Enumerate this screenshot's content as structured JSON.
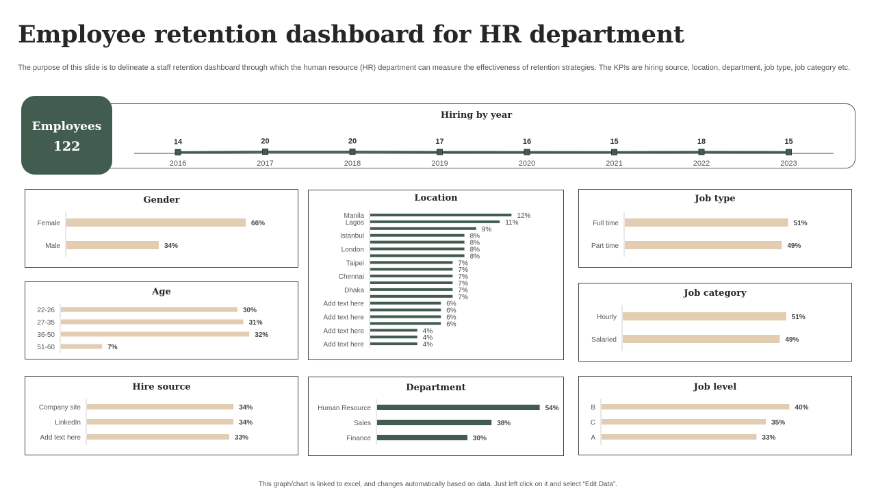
{
  "page": {
    "title": "Employee retention dashboard for HR department",
    "subtitle": "The purpose of this slide is to delineate a staff retention dashboard through which the human resource (HR) department can measure the effectiveness of retention strategies. The KPIs are hiring source, location, department, job type, job category etc.",
    "footer": "This graph/chart is linked to excel, and changes automatically based on data. Just left click on it and select “Edit Data”."
  },
  "employees": {
    "label": "Employees",
    "value": "122"
  },
  "colors": {
    "dark_green": "#435c50",
    "beige": "#e2cdb3",
    "text": "#333333"
  },
  "chart_data": [
    {
      "id": "hiring",
      "type": "line",
      "title": "Hiring by year",
      "categories": [
        "2016",
        "2017",
        "2018",
        "2019",
        "2020",
        "2021",
        "2022",
        "2023"
      ],
      "values": [
        14,
        20,
        20,
        17,
        16,
        15,
        18,
        15
      ],
      "labels": [
        "14",
        "20",
        "20",
        "17",
        "16",
        "15",
        "18",
        "15"
      ],
      "ylim": [
        0,
        600
      ]
    },
    {
      "id": "gender",
      "type": "bar",
      "title": "Gender",
      "categories": [
        "Female",
        "Male"
      ],
      "values": [
        66,
        34
      ],
      "labels": [
        "66%",
        "34%"
      ]
    },
    {
      "id": "age",
      "type": "bar",
      "title": "Age",
      "categories": [
        "22-26",
        "27-35",
        "36-50",
        "51-60"
      ],
      "values": [
        30,
        31,
        32,
        7
      ],
      "labels": [
        "30%",
        "31%",
        "32%",
        "7%"
      ]
    },
    {
      "id": "hire_source",
      "type": "bar",
      "title": "Hire source",
      "categories": [
        "Company site",
        "LinkedIn",
        "Add text here"
      ],
      "values": [
        34,
        34,
        33
      ],
      "labels": [
        "34%",
        "34%",
        "33%"
      ]
    },
    {
      "id": "location",
      "type": "bar",
      "title": "Location",
      "categories": [
        "Manila",
        "Lagos",
        "",
        "Istanbul",
        "",
        "London",
        "",
        "Taipei",
        "",
        "Chennai",
        "",
        "Dhaka",
        "",
        "Add text here",
        "",
        "Add text here",
        "",
        "Add text here",
        "",
        "Add text here"
      ],
      "values": [
        12,
        11,
        9,
        8,
        8,
        8,
        8,
        7,
        7,
        7,
        7,
        7,
        7,
        6,
        6,
        6,
        6,
        4,
        4,
        4
      ],
      "labels": [
        "12%",
        "11%",
        "9%",
        "8%",
        "8%",
        "8%",
        "8%",
        "7%",
        "7%",
        "7%",
        "7%",
        "7%",
        "7%",
        "6%",
        "6%",
        "6%",
        "6%",
        "4%",
        "4%",
        "4%"
      ]
    },
    {
      "id": "department",
      "type": "bar",
      "title": "Department",
      "categories": [
        "Human Resource",
        "Sales",
        "Finance"
      ],
      "values": [
        54,
        38,
        30
      ],
      "labels": [
        "54%",
        "38%",
        "30%"
      ]
    },
    {
      "id": "job_type",
      "type": "bar",
      "title": "Job type",
      "categories": [
        "Full time",
        "Part time"
      ],
      "values": [
        51,
        49
      ],
      "labels": [
        "51%",
        "49%"
      ]
    },
    {
      "id": "job_category",
      "type": "bar",
      "title": "Job category",
      "categories": [
        "Hourly",
        "Salaried"
      ],
      "values": [
        51,
        49
      ],
      "labels": [
        "51%",
        "49%"
      ]
    },
    {
      "id": "job_level",
      "type": "bar",
      "title": "Job level",
      "categories": [
        "B",
        "C",
        "A"
      ],
      "values": [
        40,
        35,
        33
      ],
      "labels": [
        "40%",
        "35%",
        "33%"
      ]
    }
  ]
}
